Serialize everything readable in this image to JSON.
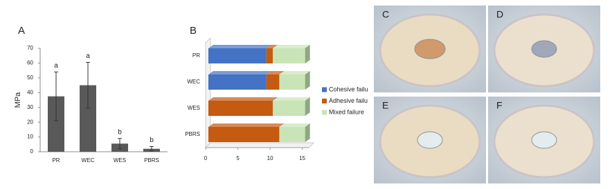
{
  "chart_data": [
    {
      "type": "bar",
      "panel": "A",
      "ylabel": "MPa",
      "categories": [
        "PR",
        "WEC",
        "WES",
        "PBRS"
      ],
      "values": [
        37.5,
        45,
        5.5,
        2
      ],
      "errors": [
        16.5,
        15.5,
        3.5,
        1.5
      ],
      "letters": [
        "a",
        "a",
        "b",
        "b"
      ],
      "color": "#595959",
      "ylim": [
        0,
        70
      ],
      "yticks": [
        0,
        10,
        20,
        30,
        40,
        50,
        60,
        70
      ]
    },
    {
      "type": "hbar",
      "panel": "B",
      "categories": [
        "PR",
        "WEC",
        "WES",
        "PBRS"
      ],
      "series": [
        {
          "name": "Cohesive failu",
          "color": "#4472c4",
          "values": [
            9,
            9,
            0,
            0
          ]
        },
        {
          "name": "Adhesive failu",
          "color": "#c55a11",
          "values": [
            1,
            2,
            10,
            11
          ]
        },
        {
          "name": "Mixed failure",
          "color": "#c9e4b6",
          "values": [
            5,
            4,
            5,
            4
          ]
        }
      ],
      "xlim": [
        0,
        16
      ],
      "xticks": [
        0,
        5,
        10,
        15
      ],
      "legend": "right"
    }
  ],
  "photos": [
    {
      "label": "C"
    },
    {
      "label": "D"
    },
    {
      "label": "E"
    },
    {
      "label": "F"
    }
  ]
}
